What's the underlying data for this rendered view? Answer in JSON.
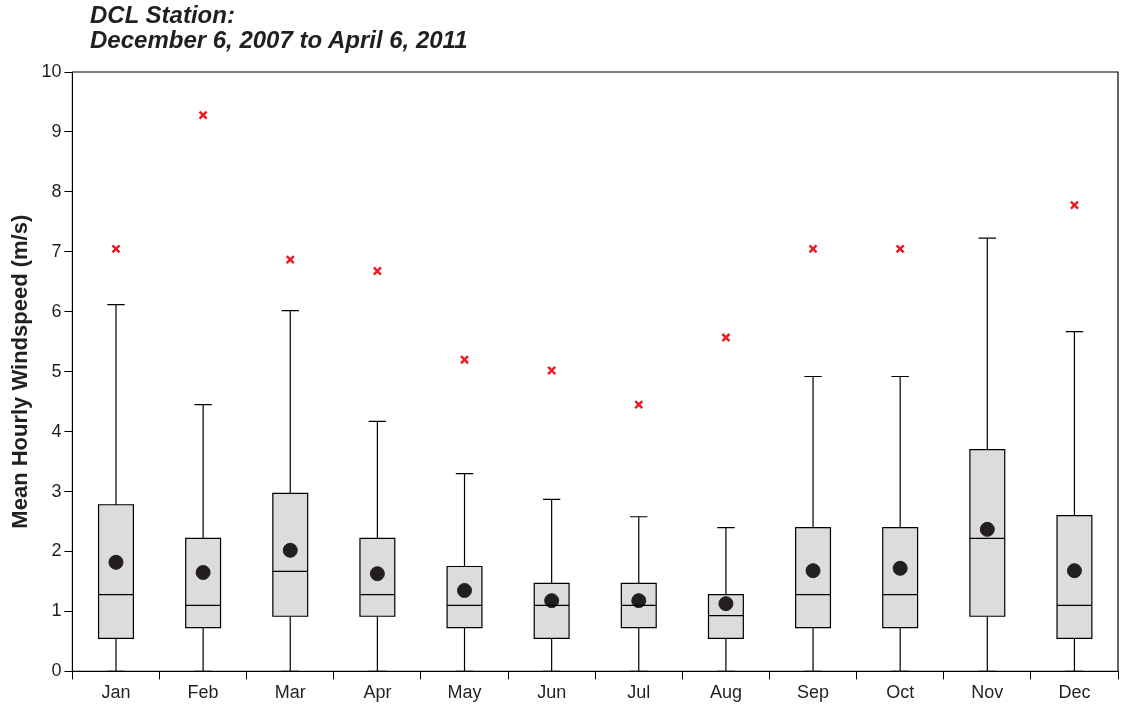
{
  "chart_data": {
    "type": "box",
    "title": "DCL Station:\nDecember 6, 2007 to April 6, 2011",
    "ylabel": "Mean Hourly Windspeed (m/s)",
    "categories": [
      "Jan",
      "Feb",
      "Mar",
      "Apr",
      "May",
      "Jun",
      "Jul",
      "Aug",
      "Sep",
      "Oct",
      "Nov",
      "Dec"
    ],
    "color": "#dcdcdc",
    "boxes": [
      {
        "low": 0,
        "q1": 0.55,
        "median": 1.28,
        "q3": 2.78,
        "high": 6.12,
        "mean": 1.82,
        "outliers": [
          7.05
        ]
      },
      {
        "low": 0,
        "q1": 0.73,
        "median": 1.1,
        "q3": 2.22,
        "high": 4.45,
        "mean": 1.65,
        "outliers": [
          9.28
        ]
      },
      {
        "low": 0,
        "q1": 0.92,
        "median": 1.67,
        "q3": 2.97,
        "high": 6.02,
        "mean": 2.02,
        "outliers": [
          6.87
        ]
      },
      {
        "low": 0,
        "q1": 0.92,
        "median": 1.28,
        "q3": 2.22,
        "high": 4.17,
        "mean": 1.63,
        "outliers": [
          6.68
        ]
      },
      {
        "low": 0,
        "q1": 0.73,
        "median": 1.1,
        "q3": 1.75,
        "high": 3.3,
        "mean": 1.35,
        "outliers": [
          5.2
        ]
      },
      {
        "low": 0,
        "q1": 0.55,
        "median": 1.1,
        "q3": 1.47,
        "high": 2.87,
        "mean": 1.18,
        "outliers": [
          5.02
        ]
      },
      {
        "low": 0,
        "q1": 0.73,
        "median": 1.1,
        "q3": 1.47,
        "high": 2.58,
        "mean": 1.18,
        "outliers": [
          4.45
        ]
      },
      {
        "low": 0,
        "q1": 0.55,
        "median": 0.93,
        "q3": 1.28,
        "high": 2.4,
        "mean": 1.13,
        "outliers": [
          5.57
        ]
      },
      {
        "low": 0,
        "q1": 0.73,
        "median": 1.28,
        "q3": 2.4,
        "high": 4.92,
        "mean": 1.68,
        "outliers": [
          7.05
        ]
      },
      {
        "low": 0,
        "q1": 0.73,
        "median": 1.28,
        "q3": 2.4,
        "high": 4.92,
        "mean": 1.72,
        "outliers": [
          7.05
        ]
      },
      {
        "low": 0,
        "q1": 0.92,
        "median": 2.22,
        "q3": 3.7,
        "high": 7.23,
        "mean": 2.37
      },
      {
        "low": 0,
        "q1": 0.55,
        "median": 1.1,
        "q3": 2.6,
        "high": 5.67,
        "mean": 1.68,
        "outliers": [
          7.78
        ]
      }
    ],
    "ylim": [
      0,
      10
    ],
    "yticks": [
      0,
      1,
      2,
      3,
      4,
      5,
      6,
      7,
      8,
      9,
      10
    ],
    "grid": false,
    "legend": false
  }
}
